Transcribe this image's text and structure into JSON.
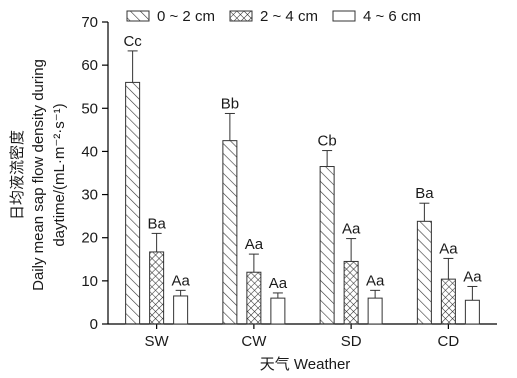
{
  "chart_data": {
    "type": "bar",
    "categories": [
      "SW",
      "CW",
      "SD",
      "CD"
    ],
    "series": [
      {
        "name": "0 ~ 2 cm",
        "pattern": "diagonal",
        "values": [
          56,
          42.5,
          36.5,
          23.8
        ],
        "errors": [
          7.3,
          6.3,
          3.7,
          4.2
        ],
        "labels": [
          "Cc",
          "Bb",
          "Cb",
          "Ba"
        ]
      },
      {
        "name": "2 ~ 4 cm",
        "pattern": "crosshatch",
        "values": [
          16.7,
          12,
          14.5,
          10.4
        ],
        "errors": [
          4.3,
          4.2,
          5.3,
          4.8
        ],
        "labels": [
          "Ba",
          "Aa",
          "Aa",
          "Aa"
        ]
      },
      {
        "name": "4 ~ 6 cm",
        "pattern": "empty",
        "values": [
          6.5,
          6,
          6,
          5.5
        ],
        "errors": [
          1.3,
          1.2,
          1.8,
          3.2
        ],
        "labels": [
          "Aa",
          "Aa",
          "Aa",
          "Aa"
        ]
      }
    ],
    "ylim": [
      0,
      70
    ],
    "yticks": [
      0,
      10,
      20,
      30,
      40,
      50,
      60,
      70
    ],
    "xlabel": "天气 Weather",
    "ylabel_cn": "日均液流密度",
    "ylabel_en_line1": "Daily mean sap flow density during",
    "ylabel_en_line2": "daytime/(mL·m⁻²·s⁻¹)",
    "legend_position": "top",
    "grid": false
  }
}
